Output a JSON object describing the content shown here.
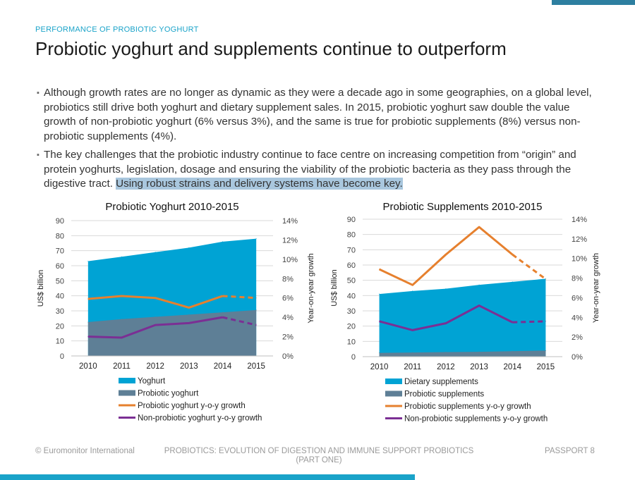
{
  "colors": {
    "accent": "#1aa3c9",
    "dark_accent": "#2d7fa0",
    "yoghurt": "#00a3d4",
    "probiotic": "#5e7f96",
    "orange": "#e6802e",
    "purple": "#7b2f94"
  },
  "header": {
    "eyebrow": "PERFORMANCE OF PROBIOTIC YOGHURT",
    "title": "Probiotic yoghurt and supplements continue to outperform"
  },
  "bullets": [
    {
      "text": "Although growth rates are no longer as dynamic as they were a decade ago in some geographies, on a global level, probiotics still drive both yoghurt and dietary supplement sales. In 2015, probiotic yoghurt saw double the value growth of non-probiotic yoghurt (6% versus 3%), and the same is true for probiotic supplements (8%) versus non-probiotic supplements (4%).",
      "highlight": ""
    },
    {
      "text": "The key challenges that the probiotic industry continue to face centre on increasing competition from “origin” and protein yoghurts, legislation, dosage and ensuring the viability of the probiotic bacteria as they pass through the digestive tract. ",
      "highlight": "Using robust strains and delivery systems have become key."
    }
  ],
  "chart_data": [
    {
      "type": "area",
      "title": "Probiotic Yoghurt 2010-2015",
      "ylabel": "US$ billion",
      "y2label": "Year-on-year growth",
      "categories": [
        "2010",
        "2011",
        "2012",
        "2013",
        "2014",
        "2015"
      ],
      "ylim": [
        0,
        90
      ],
      "y_ticks": [
        "0",
        "10",
        "20",
        "30",
        "40",
        "50",
        "60",
        "70",
        "80",
        "90"
      ],
      "y2lim": [
        0,
        14
      ],
      "y2_ticks": [
        "0%",
        "2%",
        "4%",
        "6%",
        "8%",
        "10%",
        "12%",
        "14%"
      ],
      "area_series": [
        {
          "name": "Yoghurt",
          "values": [
            63,
            66,
            69,
            72,
            76,
            78
          ],
          "color": "#00a3d4"
        },
        {
          "name": "Probiotic yoghurt",
          "values": [
            22.5,
            24.5,
            26,
            27.5,
            29,
            30.5
          ],
          "color": "#5e7f96"
        }
      ],
      "line_series": [
        {
          "name": "Probiotic yoghurt y-o-y growth",
          "values": [
            5.9,
            6.2,
            6.0,
            5.0,
            6.2,
            6.0
          ],
          "dashed_from": 4,
          "color": "#e6802e"
        },
        {
          "name": "Non-probiotic yoghurt y-o-y growth",
          "values": [
            2.0,
            1.9,
            3.2,
            3.4,
            4.0,
            3.2
          ],
          "dashed_from": 4,
          "color": "#7b2f94"
        }
      ],
      "legend": [
        "Yoghurt",
        "Probiotic yoghurt",
        "Probiotic yoghurt y-o-y growth",
        "Non-probiotic yoghurt y-o-y growth"
      ],
      "legend_position": "bottom",
      "grid": true
    },
    {
      "type": "area",
      "title": "Probiotic Supplements 2010-2015",
      "ylabel": "US$ billion",
      "y2label": "Year-on-year growth",
      "categories": [
        "2010",
        "2011",
        "2012",
        "2013",
        "2014",
        "2015"
      ],
      "ylim": [
        0,
        90
      ],
      "y_ticks": [
        "0",
        "10",
        "20",
        "30",
        "40",
        "50",
        "60",
        "70",
        "80",
        "90"
      ],
      "y2lim": [
        0,
        14
      ],
      "y2_ticks": [
        "0%",
        "2%",
        "4%",
        "6%",
        "8%",
        "10%",
        "12%",
        "14%"
      ],
      "area_series": [
        {
          "name": "Dietary supplements",
          "values": [
            41,
            43,
            44.5,
            47,
            49,
            51
          ],
          "color": "#00a3d4"
        },
        {
          "name": "Probiotic supplements",
          "values": [
            2.5,
            2.7,
            3.0,
            3.2,
            3.6,
            4.0
          ],
          "color": "#5e7f96"
        }
      ],
      "line_series": [
        {
          "name": "Probiotic supplements y-o-y growth",
          "values": [
            8.9,
            7.3,
            10.4,
            13.2,
            10.4,
            7.9
          ],
          "dashed_from": 4,
          "color": "#e6802e"
        },
        {
          "name": "Non-probiotic supplements y-o-y growth",
          "values": [
            3.6,
            2.7,
            3.4,
            5.2,
            3.5,
            3.6
          ],
          "dashed_from": 4,
          "color": "#7b2f94"
        }
      ],
      "legend": [
        "Dietary supplements",
        "Probiotic supplements",
        "Probiotic supplements y-o-y growth",
        "Non-probiotic supplements y-o-y growth"
      ],
      "legend_position": "bottom",
      "grid": true
    }
  ],
  "footer": {
    "copyright": "© Euromonitor International",
    "center_line1": "PROBIOTICS: EVOLUTION OF DIGESTION AND IMMUNE  SUPPORT PROBIOTICS",
    "center_line2": "(PART ONE)",
    "right": "PASSPORT   8"
  }
}
